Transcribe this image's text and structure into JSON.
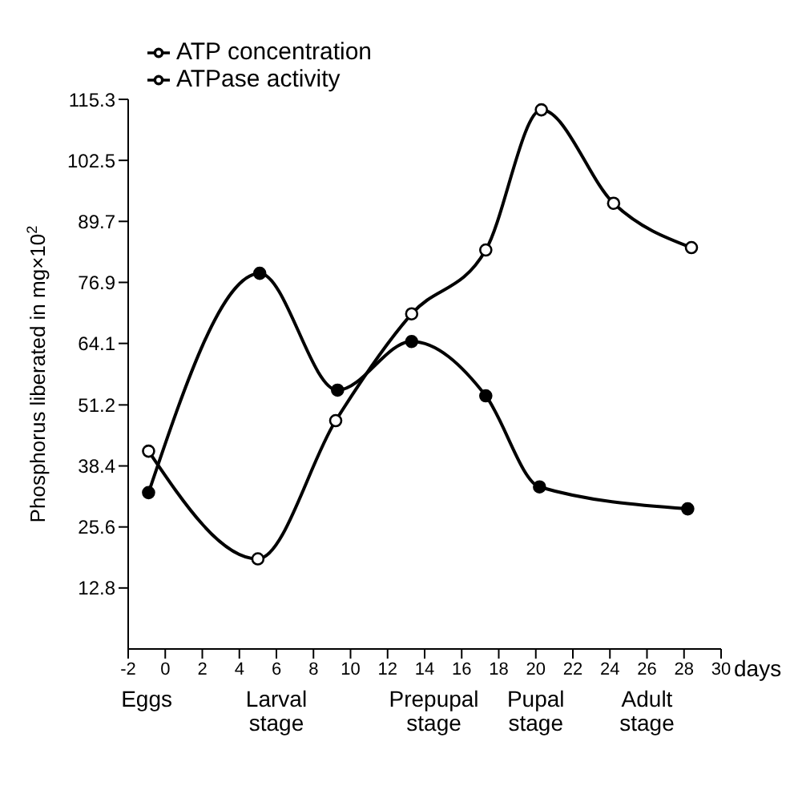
{
  "chart_data": {
    "type": "line",
    "xlabel": "days",
    "ylabel": "Phosphorus liberated in mg×10$^{2}$",
    "xlim": [
      -2,
      30
    ],
    "xticks": [
      -2,
      0,
      2,
      4,
      6,
      8,
      10,
      12,
      14,
      16,
      18,
      20,
      22,
      24,
      26,
      28,
      30
    ],
    "ylim": [
      0,
      115.3
    ],
    "yticks": [
      12.8,
      25.6,
      38.4,
      51.2,
      64.1,
      76.9,
      89.7,
      102.5,
      115.3
    ],
    "series": [
      {
        "name": "ATP concentration",
        "color": "#000000",
        "x": [
          -0.9,
          5,
          9.2,
          13.3,
          17.3,
          20.3,
          24.2,
          28.4
        ],
        "values": [
          41.5,
          18.9,
          47.9,
          70.3,
          83.7,
          113.1,
          93.5,
          84.2
        ]
      },
      {
        "name": "ATPase activity",
        "color": "#000000",
        "x": [
          -0.9,
          5.1,
          9.3,
          13.3,
          17.3,
          20.2,
          28.2
        ],
        "values": [
          32.8,
          78.8,
          54.3,
          64.5,
          53.1,
          34.0,
          29.4
        ]
      }
    ],
    "annotations": [
      "Eggs",
      "Larval stage",
      "Prepupal stage",
      "Pupal stage",
      "Adult stage"
    ],
    "marker": "circle",
    "line_style": "solid",
    "legend": "top left"
  }
}
